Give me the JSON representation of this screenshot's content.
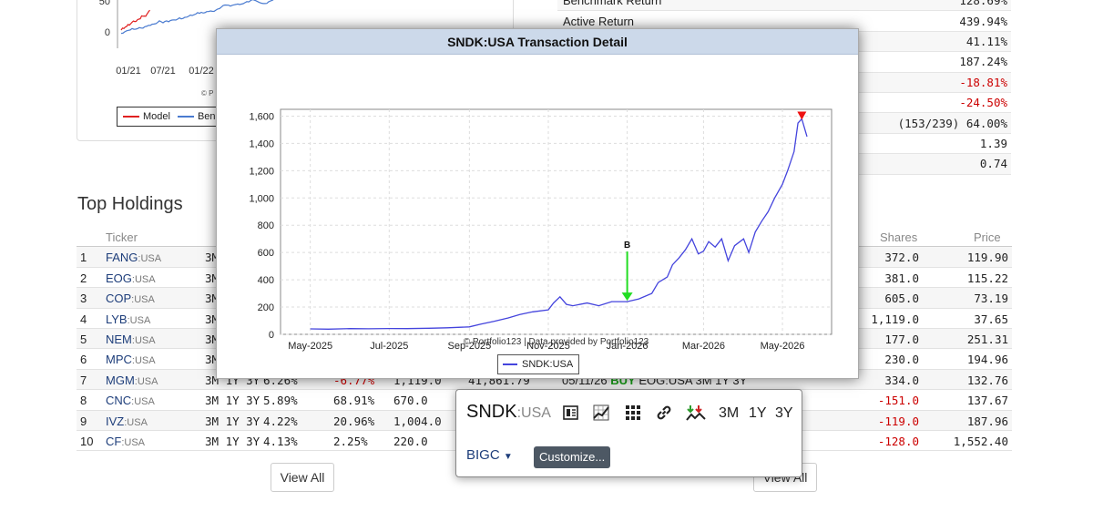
{
  "perf_chart": {
    "yticks": [
      "50",
      "0"
    ],
    "xticks": [
      "01/21",
      "07/21",
      "01/22"
    ],
    "copyright": "© P",
    "legend": [
      {
        "name": "Model",
        "color": "#e02020"
      },
      {
        "name": "Benc",
        "color": "#4a7bd0"
      }
    ]
  },
  "stats": [
    {
      "label": "Benchmark Return",
      "value": "128.69%",
      "neg": false
    },
    {
      "label": "Active Return",
      "value": "439.94%",
      "neg": false
    },
    {
      "label": "",
      "value": "41.11%",
      "neg": false
    },
    {
      "label": "",
      "value": "187.24%",
      "neg": false
    },
    {
      "label": "",
      "value": "-18.81%",
      "neg": true
    },
    {
      "label": "",
      "value": "-24.50%",
      "neg": true
    },
    {
      "label": "",
      "value": "(153/239) 64.00%",
      "neg": false
    },
    {
      "label": "",
      "value": "1.39",
      "neg": false
    },
    {
      "label": "",
      "value": "0.74",
      "neg": false
    }
  ],
  "holdings": {
    "title": "Top Holdings",
    "headers": {
      "ticker": "Ticker",
      "shares": "Shares",
      "price": "Price"
    },
    "rows": [
      {
        "n": "1",
        "t": "FANG",
        "ex": ":USA",
        "p": "3M",
        "w": "",
        "r": "",
        "v": "",
        "mv": "",
        "trade": "",
        "shares": "372.0",
        "price": "119.90",
        "sneg": false
      },
      {
        "n": "2",
        "t": "EOG",
        "ex": ":USA",
        "p": "3M",
        "w": "",
        "r": "",
        "v": "",
        "mv": "",
        "trade": "",
        "shares": "381.0",
        "price": "115.22",
        "sneg": false
      },
      {
        "n": "3",
        "t": "COP",
        "ex": ":USA",
        "p": "3M",
        "w": "",
        "r": "",
        "v": "",
        "mv": "",
        "trade": "",
        "shares": "605.0",
        "price": "73.19",
        "sneg": false
      },
      {
        "n": "4",
        "t": "LYB",
        "ex": ":USA",
        "p": "3M",
        "w": "",
        "r": "",
        "v": "",
        "mv": "",
        "trade": "",
        "shares": "1,119.0",
        "price": "37.65",
        "sneg": false
      },
      {
        "n": "5",
        "t": "NEM",
        "ex": ":USA",
        "p": "3M",
        "w": "",
        "r": "",
        "v": "",
        "mv": "",
        "trade": "",
        "shares": "177.0",
        "price": "251.31",
        "sneg": false
      },
      {
        "n": "6",
        "t": "MPC",
        "ex": ":USA",
        "p": "3M",
        "w": "",
        "r": "",
        "v": "",
        "mv": "",
        "trade": "",
        "shares": "230.0",
        "price": "194.96",
        "sneg": false
      },
      {
        "n": "7",
        "t": "MGM",
        "ex": ":USA",
        "p": "3M 1Y 3Y",
        "w": "6.26%",
        "r": "-6.77%",
        "v": "1,119.0",
        "mv": "41,861.79",
        "trade": "05/11/26 BUY EOG:USA 3M 1Y 3Y",
        "shares": "334.0",
        "price": "132.76",
        "sneg": false
      },
      {
        "n": "8",
        "t": "CNC",
        "ex": ":USA",
        "p": "3M 1Y 3Y",
        "w": "5.89%",
        "r": "68.91%",
        "v": "670.0",
        "mv": "",
        "trade": "3M 1Y 3Y",
        "shares": "-151.0",
        "price": "137.67",
        "sneg": true
      },
      {
        "n": "9",
        "t": "IVZ",
        "ex": ":USA",
        "p": "3M 1Y 3Y",
        "w": "4.22%",
        "r": "20.96%",
        "v": "1,004.0",
        "mv": "",
        "trade": "3M 1Y 3Y",
        "shares": "-119.0",
        "price": "187.96",
        "sneg": true
      },
      {
        "n": "10",
        "t": "CF",
        "ex": ":USA",
        "p": "3M 1Y 3Y",
        "w": "4.13%",
        "r": "2.25%",
        "v": "220.0",
        "mv": "",
        "trade": "3M 1Y 3Y",
        "shares": "-128.0",
        "price": "1,552.40",
        "sneg": true
      }
    ],
    "view_all": "View All"
  },
  "modal": {
    "title": "SNDK:USA Transaction Detail",
    "credit": "© Portfolio123 | Data provided by Portfolio123",
    "legend_label": "SNDK:USA"
  },
  "popup": {
    "symbol": "SNDK",
    "exchange": ":USA",
    "periods": [
      "3M",
      "1Y",
      "3Y"
    ],
    "benchmark": "BIGC",
    "customize": "Customize..."
  },
  "chart_data": {
    "type": "line",
    "title": "SNDK:USA Transaction Detail",
    "xlabel": "",
    "ylabel": "",
    "x_ticks": [
      "May-2025",
      "Jul-2025",
      "Sep-2025",
      "Nov-2025",
      "Jan-2026",
      "Mar-2026",
      "May-2026"
    ],
    "y_ticks": [
      "0",
      "200",
      "400",
      "600",
      "800",
      "1,000",
      "1,200",
      "1,400",
      "1,600"
    ],
    "ylim": [
      0,
      1650
    ],
    "grid": true,
    "legend_position": "bottom",
    "series": [
      {
        "name": "SNDK:USA",
        "color": "#4444dd",
        "x": [
          "2025-05-01",
          "2025-05-15",
          "2025-06-01",
          "2025-06-15",
          "2025-07-01",
          "2025-07-15",
          "2025-08-01",
          "2025-08-15",
          "2025-09-01",
          "2025-09-10",
          "2025-09-20",
          "2025-10-01",
          "2025-10-10",
          "2025-10-20",
          "2025-11-01",
          "2025-11-05",
          "2025-11-10",
          "2025-11-15",
          "2025-11-20",
          "2025-12-01",
          "2025-12-10",
          "2025-12-20",
          "2026-01-01",
          "2026-01-10",
          "2026-01-20",
          "2026-01-25",
          "2026-02-01",
          "2026-02-05",
          "2026-02-10",
          "2026-02-15",
          "2026-02-20",
          "2026-02-25",
          "2026-03-01",
          "2026-03-05",
          "2026-03-10",
          "2026-03-15",
          "2026-03-20",
          "2026-03-25",
          "2026-04-01",
          "2026-04-05",
          "2026-04-10",
          "2026-04-15",
          "2026-04-20",
          "2026-04-25",
          "2026-05-01",
          "2026-05-05",
          "2026-05-10",
          "2026-05-13",
          "2026-05-16",
          "2026-05-20"
        ],
        "y": [
          40,
          38,
          42,
          41,
          43,
          42,
          45,
          48,
          55,
          75,
          95,
          120,
          145,
          165,
          180,
          230,
          275,
          220,
          210,
          230,
          210,
          240,
          240,
          260,
          300,
          380,
          420,
          510,
          560,
          620,
          700,
          590,
          610,
          680,
          640,
          700,
          540,
          650,
          700,
          600,
          750,
          830,
          900,
          1000,
          1100,
          1200,
          1340,
          1550,
          1580,
          1450
        ]
      }
    ],
    "annotations": [
      {
        "label": "B",
        "x": "2026-01-01",
        "y": 240,
        "type": "buy"
      },
      {
        "label": "",
        "x": "2026-05-16",
        "y": 1580,
        "type": "sell"
      }
    ]
  }
}
